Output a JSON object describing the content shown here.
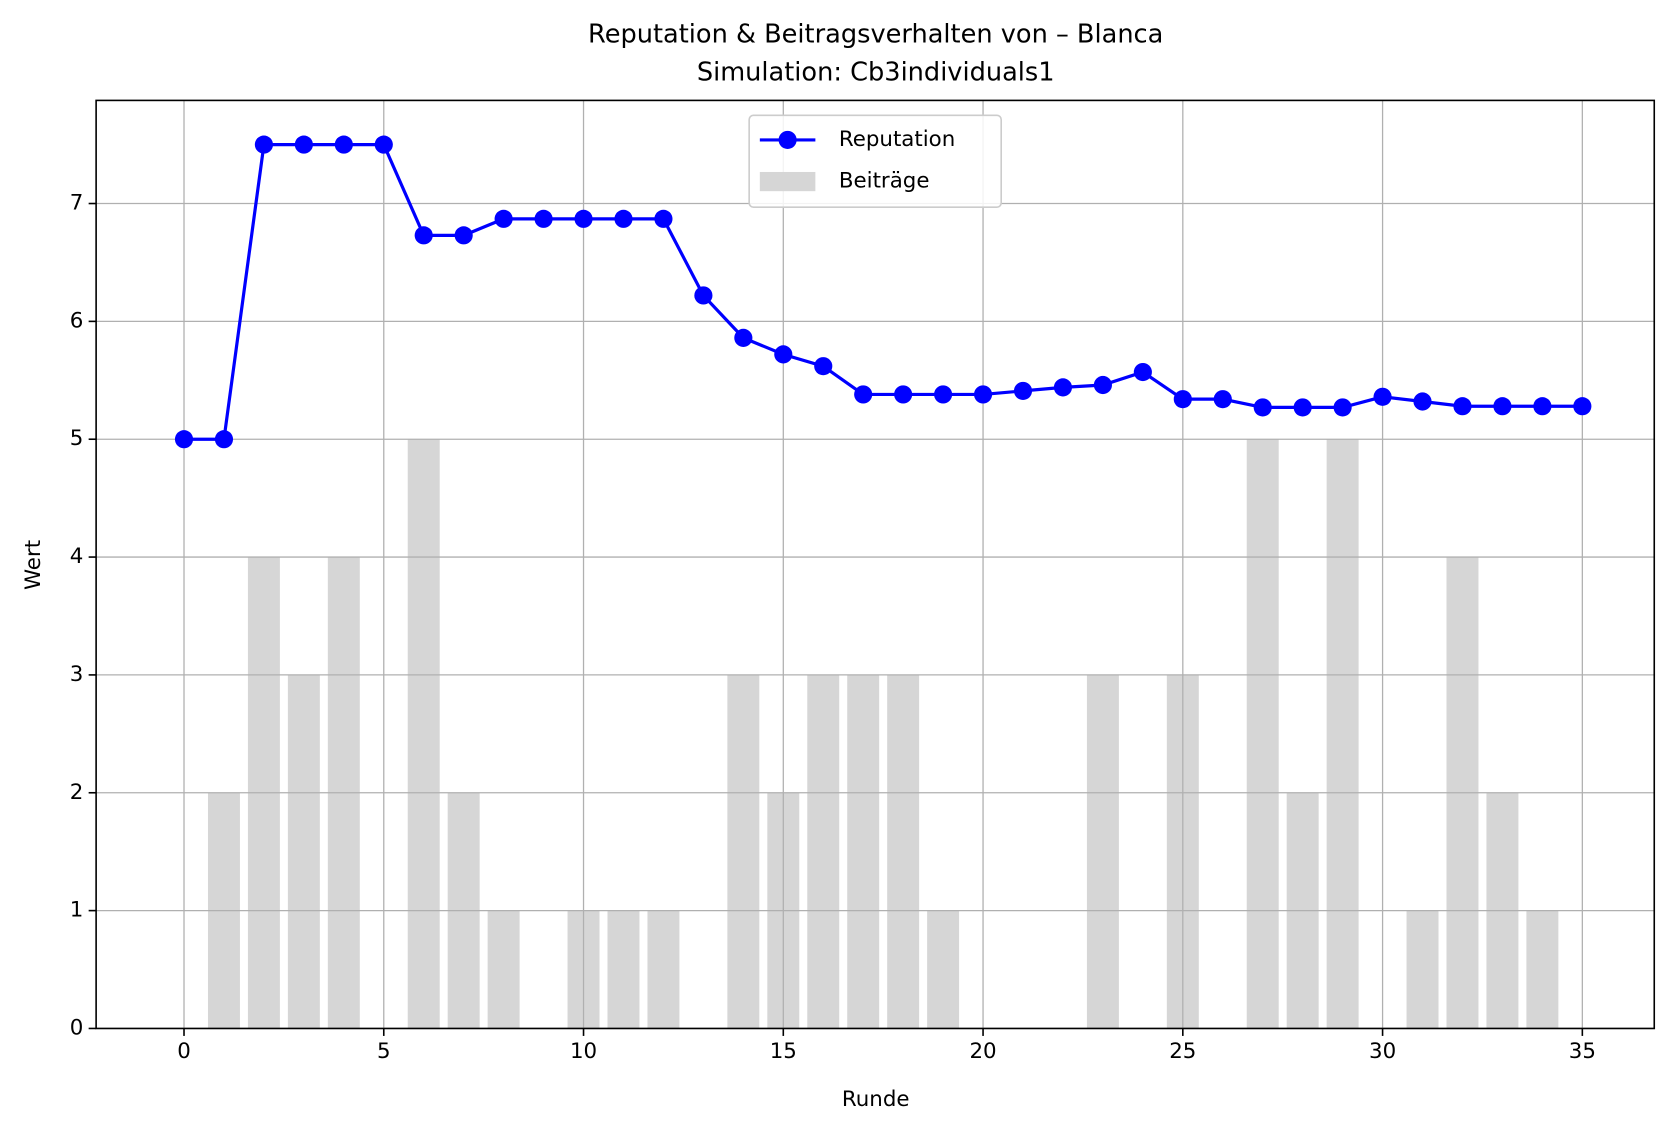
{
  "chart_data": {
    "type": "combo",
    "title": "Reputation & Beitragsverhalten von – Blanca",
    "subtitle": "Simulation: Cb3individuals1",
    "x_label": "Runde",
    "y_label": "Wert",
    "x": [
      0,
      1,
      2,
      3,
      4,
      5,
      6,
      7,
      8,
      9,
      10,
      11,
      12,
      13,
      14,
      15,
      16,
      17,
      18,
      19,
      20,
      21,
      22,
      23,
      24,
      25,
      26,
      27,
      28,
      29,
      30,
      31,
      32,
      33,
      34,
      35
    ],
    "series": [
      {
        "name": "Reputation",
        "type": "line",
        "color": "#0000ff",
        "values": [
          5,
          5,
          7.5,
          7.5,
          7.5,
          7.5,
          6.73,
          6.73,
          6.87,
          6.87,
          6.87,
          6.87,
          6.87,
          6.22,
          5.86,
          5.72,
          5.62,
          5.38,
          5.38,
          5.38,
          5.38,
          5.41,
          5.44,
          5.46,
          5.57,
          5.34,
          5.34,
          5.27,
          5.27,
          5.27,
          5.36,
          5.32,
          5.28,
          5.28,
          5.28,
          5.28
        ]
      },
      {
        "name": "Beiträge",
        "type": "bar",
        "color": "#d6d6d6",
        "values": [
          0,
          2,
          4,
          3,
          4,
          0,
          5,
          2,
          1,
          0,
          1,
          1,
          1,
          0,
          3,
          2,
          3,
          3,
          3,
          1,
          0,
          0,
          0,
          3,
          0,
          3,
          0,
          5,
          2,
          5,
          0,
          1,
          4,
          2,
          1,
          0
        ]
      }
    ],
    "xlim": [
      -2.2,
      36.8
    ],
    "xticks": [
      0,
      5,
      10,
      15,
      20,
      25,
      30,
      35
    ],
    "ylim": [
      0,
      7.875
    ],
    "yticks": [
      0,
      1,
      2,
      3,
      4,
      5,
      6,
      7
    ],
    "grid": true,
    "legend": "upper center"
  }
}
